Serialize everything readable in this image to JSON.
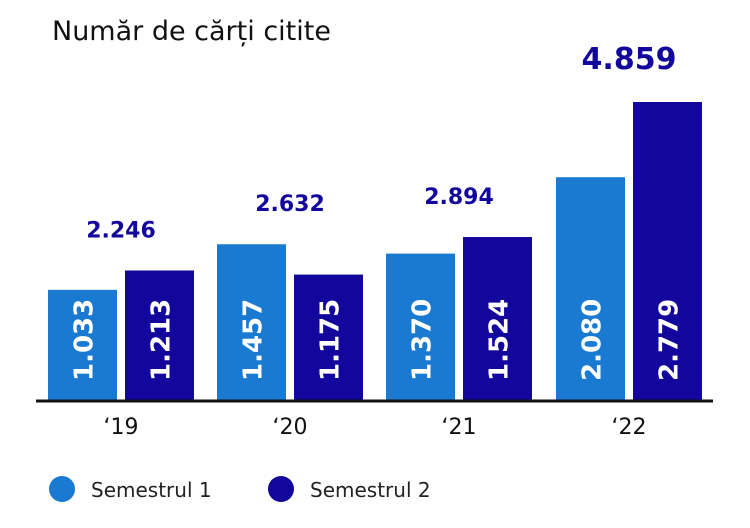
{
  "chart_data": {
    "type": "bar",
    "title": "Număr de cărți citite",
    "categories": [
      "‘19",
      "‘20",
      "‘21",
      "‘22"
    ],
    "series": [
      {
        "name": "Semestrul 1",
        "color": "#1a7ad1",
        "values": [
          1033,
          1457,
          1370,
          2080
        ],
        "labels": [
          "1.033",
          "1.457",
          "1.370",
          "2.080"
        ]
      },
      {
        "name": "Semestrul 2",
        "color": "#12069c",
        "values": [
          1213,
          1175,
          1524,
          2779
        ],
        "labels": [
          "1.213",
          "1.175",
          "1.524",
          "2.779"
        ]
      }
    ],
    "totals": [
      "2.246",
      "2.632",
      "2.894",
      "4.859"
    ],
    "total_color": "#12069c",
    "stacked": false,
    "grid": false,
    "legend": "bottom-left",
    "ylim": [
      0,
      2779
    ]
  }
}
